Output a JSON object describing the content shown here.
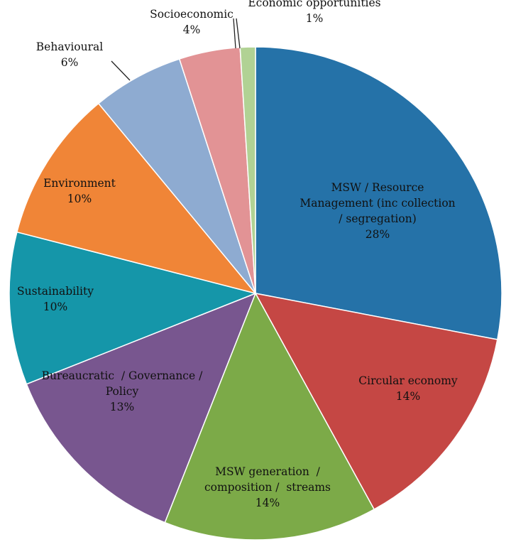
{
  "chart_data": {
    "type": "pie",
    "title": "",
    "slices": [
      {
        "name": "MSW / Resource Management (inc collection / segregation)",
        "value": 28,
        "color": "#2572a8",
        "label_lines": [
          "MSW / Resource",
          "Management (inc collection",
          "/ segregation)"
        ],
        "pct_label": "28%"
      },
      {
        "name": "Circular economy",
        "value": 14,
        "color": "#c54744",
        "label_lines": [
          "Circular economy"
        ],
        "pct_label": "14%"
      },
      {
        "name": "MSW generation / composition / streams",
        "value": 14,
        "color": "#7caa48",
        "label_lines": [
          "MSW generation  /",
          "composition /  streams"
        ],
        "pct_label": "14%"
      },
      {
        "name": "Bureaucratic / Governance / Policy",
        "value": 13,
        "color": "#78568f",
        "label_lines": [
          "Bureaucratic  / Governance /",
          "Policy"
        ],
        "pct_label": "13%"
      },
      {
        "name": "Sustainability",
        "value": 10,
        "color": "#1596a9",
        "label_lines": [
          "Sustainability"
        ],
        "pct_label": "10%"
      },
      {
        "name": "Environment",
        "value": 10,
        "color": "#f08537",
        "label_lines": [
          "Environment"
        ],
        "pct_label": "10%"
      },
      {
        "name": "Behavioural",
        "value": 6,
        "color": "#8eabd1",
        "label_lines": [
          "Behavioural"
        ],
        "pct_label": "6%"
      },
      {
        "name": "Socioeconomic",
        "value": 4,
        "color": "#e29395",
        "label_lines": [
          "Socioeconomic"
        ],
        "pct_label": "4%"
      },
      {
        "name": "Economic opportunities",
        "value": 1,
        "color": "#b1d294",
        "label_lines": [
          "Economic opportunities"
        ],
        "pct_label": "1%"
      }
    ]
  }
}
